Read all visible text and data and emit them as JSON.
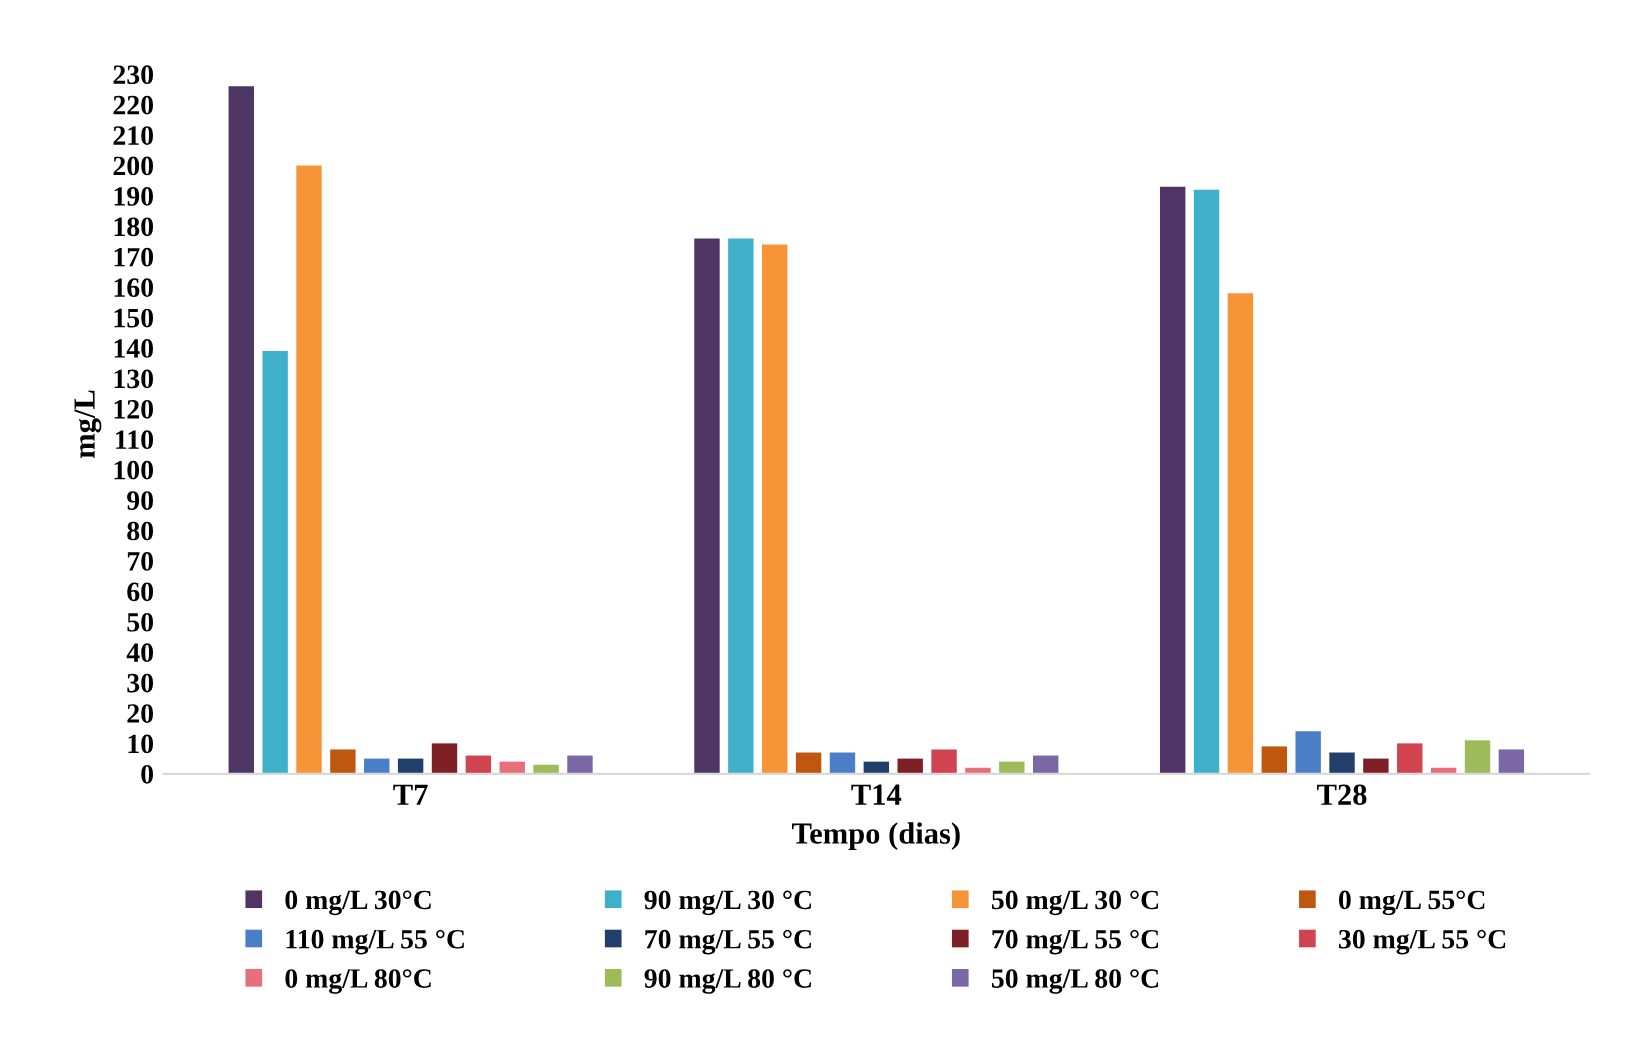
{
  "chart_data": {
    "type": "bar",
    "xlabel": "Tempo (dias)",
    "ylabel": "mg/L",
    "categories": [
      "T7",
      "T14",
      "T28"
    ],
    "series": [
      {
        "name": "0 mg/L 30°C",
        "color": "#4e3566",
        "values": [
          226,
          176,
          193
        ]
      },
      {
        "name": "90 mg/L 30 °C",
        "color": "#3fb0c9",
        "values": [
          139,
          176,
          192
        ]
      },
      {
        "name": "50 mg/L 30 °C",
        "color": "#f79438",
        "values": [
          200,
          174,
          158
        ]
      },
      {
        "name": "0 mg/L 55°C",
        "color": "#c0570f",
        "values": [
          8,
          7,
          9
        ]
      },
      {
        "name": "110 mg/L 55 °C",
        "color": "#4a7fc8",
        "values": [
          5,
          7,
          14
        ]
      },
      {
        "name": "70 mg/L 55 °C",
        "color": "#213f6b",
        "values": [
          5,
          4,
          7
        ]
      },
      {
        "name": "70 mg/L 55 °C",
        "color": "#7e1f26",
        "values": [
          10,
          5,
          5
        ]
      },
      {
        "name": "30 mg/L 55 °C",
        "color": "#d1444f",
        "values": [
          6,
          8,
          10
        ]
      },
      {
        "name": "0 mg/L 80°C",
        "color": "#e86f7a",
        "values": [
          4,
          2,
          2
        ]
      },
      {
        "name": "90 mg/L 80 °C",
        "color": "#9dbb59",
        "values": [
          3,
          4,
          11
        ]
      },
      {
        "name": "50 mg/L 80 °C",
        "color": "#7b66a6",
        "values": [
          6,
          6,
          8
        ]
      }
    ],
    "ylim": [
      0,
      230
    ],
    "yticks": [
      0,
      10,
      20,
      30,
      40,
      50,
      60,
      70,
      80,
      90,
      100,
      110,
      120,
      130,
      140,
      150,
      160,
      170,
      180,
      190,
      200,
      210,
      220,
      230
    ],
    "grid": false,
    "legend": "bottom"
  }
}
